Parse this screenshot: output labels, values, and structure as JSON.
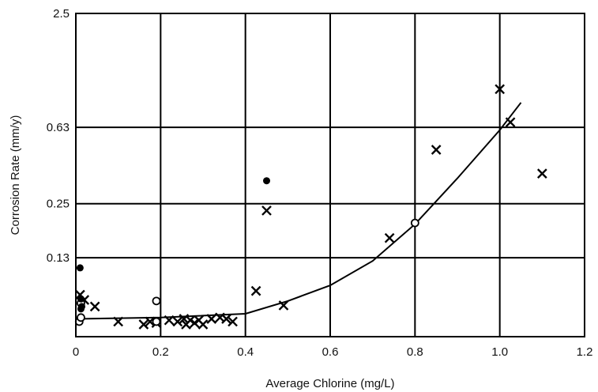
{
  "chart_data": {
    "type": "scatter",
    "xlabel": "Average Chlorine (mg/L)",
    "ylabel": "Corrosion Rate (mm/y)",
    "xlim": [
      0,
      1.2
    ],
    "x_ticks": [
      {
        "value": 0,
        "label": "0"
      },
      {
        "value": 0.2,
        "label": "0.2"
      },
      {
        "value": 0.4,
        "label": "0.4"
      },
      {
        "value": 0.6,
        "label": "0.6"
      },
      {
        "value": 0.8,
        "label": "0.8"
      },
      {
        "value": 1.0,
        "label": "1.0"
      },
      {
        "value": 1.2,
        "label": "1.2"
      }
    ],
    "y_scale": "log",
    "ylim": [
      0.05,
      2.5
    ],
    "y_ticks": [
      {
        "value": 0.13,
        "label": "0.13"
      },
      {
        "value": 0.25,
        "label": "0.25"
      },
      {
        "value": 0.63,
        "label": "0.63"
      },
      {
        "value": 2.5,
        "label": "2.5"
      }
    ],
    "grid": true,
    "series": [
      {
        "marker": "x",
        "points": [
          [
            0.01,
            0.083
          ],
          [
            0.02,
            0.078
          ],
          [
            0.045,
            0.072
          ],
          [
            0.1,
            0.06
          ],
          [
            0.16,
            0.058
          ],
          [
            0.175,
            0.06
          ],
          [
            0.19,
            0.059
          ],
          [
            0.22,
            0.061
          ],
          [
            0.24,
            0.06
          ],
          [
            0.255,
            0.062
          ],
          [
            0.26,
            0.058
          ],
          [
            0.27,
            0.061
          ],
          [
            0.28,
            0.059
          ],
          [
            0.29,
            0.061
          ],
          [
            0.3,
            0.058
          ],
          [
            0.32,
            0.062
          ],
          [
            0.34,
            0.063
          ],
          [
            0.355,
            0.062
          ],
          [
            0.37,
            0.06
          ],
          [
            0.425,
            0.087
          ],
          [
            0.45,
            0.23
          ],
          [
            0.49,
            0.073
          ],
          [
            0.74,
            0.165
          ],
          [
            0.85,
            0.48
          ],
          [
            1.0,
            1.0
          ],
          [
            1.025,
            0.67
          ],
          [
            1.1,
            0.36
          ]
        ]
      },
      {
        "marker": "open-circle",
        "points": [
          [
            0.008,
            0.06
          ],
          [
            0.012,
            0.063
          ],
          [
            0.012,
            0.075
          ],
          [
            0.19,
            0.077
          ],
          [
            0.19,
            0.06
          ],
          [
            0.8,
            0.198
          ]
        ]
      },
      {
        "marker": "filled-circle",
        "points": [
          [
            0.01,
            0.115
          ],
          [
            0.012,
            0.079
          ],
          [
            0.012,
            0.07
          ],
          [
            0.014,
            0.072
          ],
          [
            0.45,
            0.33
          ]
        ]
      }
    ],
    "fit_curve": [
      [
        0,
        0.062
      ],
      [
        0.2,
        0.063
      ],
      [
        0.4,
        0.066
      ],
      [
        0.5,
        0.077
      ],
      [
        0.6,
        0.093
      ],
      [
        0.7,
        0.125
      ],
      [
        0.8,
        0.195
      ],
      [
        0.9,
        0.34
      ],
      [
        1.0,
        0.61
      ],
      [
        1.05,
        0.85
      ]
    ]
  }
}
